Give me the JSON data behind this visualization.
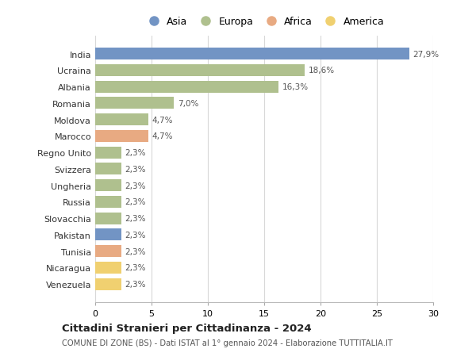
{
  "categories": [
    "India",
    "Ucraina",
    "Albania",
    "Romania",
    "Moldova",
    "Marocco",
    "Regno Unito",
    "Svizzera",
    "Ungheria",
    "Russia",
    "Slovacchia",
    "Pakistan",
    "Tunisia",
    "Nicaragua",
    "Venezuela"
  ],
  "values": [
    27.9,
    18.6,
    16.3,
    7.0,
    4.7,
    4.7,
    2.3,
    2.3,
    2.3,
    2.3,
    2.3,
    2.3,
    2.3,
    2.3,
    2.3
  ],
  "labels": [
    "27,9%",
    "18,6%",
    "16,3%",
    "7,0%",
    "4,7%",
    "4,7%",
    "2,3%",
    "2,3%",
    "2,3%",
    "2,3%",
    "2,3%",
    "2,3%",
    "2,3%",
    "2,3%",
    "2,3%"
  ],
  "colors": [
    "#7294c4",
    "#afc08e",
    "#afc08e",
    "#afc08e",
    "#afc08e",
    "#e8aa82",
    "#afc08e",
    "#afc08e",
    "#afc08e",
    "#afc08e",
    "#afc08e",
    "#7294c4",
    "#e8aa82",
    "#f0d070",
    "#f0d070"
  ],
  "legend_labels": [
    "Asia",
    "Europa",
    "Africa",
    "America"
  ],
  "legend_colors": [
    "#7294c4",
    "#afc08e",
    "#e8aa82",
    "#f0d070"
  ],
  "title": "Cittadini Stranieri per Cittadinanza - 2024",
  "subtitle": "COMUNE DI ZONE (BS) - Dati ISTAT al 1° gennaio 2024 - Elaborazione TUTTITALIA.IT",
  "xlim": [
    0,
    30
  ],
  "xticks": [
    0,
    5,
    10,
    15,
    20,
    25,
    30
  ],
  "background_color": "#ffffff",
  "grid_color": "#d8d8d8",
  "bar_height": 0.72
}
